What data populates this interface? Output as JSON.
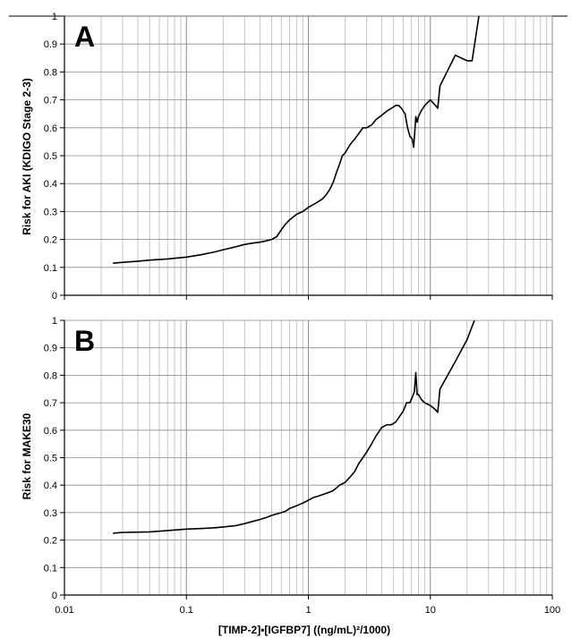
{
  "figure": {
    "top_rule": true
  },
  "chart_data": [
    {
      "type": "line",
      "panel": "A",
      "ylabel": "Risk for AKI (KDIGO Stage 2-3)",
      "xlabel": "",
      "xscale": "log",
      "xlim": [
        0.01,
        100
      ],
      "ylim": [
        0,
        1
      ],
      "xtick_labels": [],
      "ytick_labels": [
        "0",
        "0.1",
        "0.2",
        "0.3",
        "0.4",
        "0.5",
        "0.6",
        "0.7",
        "0.8",
        "0.9",
        "1"
      ],
      "grid": true,
      "x": [
        0.025,
        0.03,
        0.04,
        0.05,
        0.07,
        0.1,
        0.13,
        0.17,
        0.2,
        0.25,
        0.3,
        0.35,
        0.4,
        0.45,
        0.5,
        0.55,
        0.6,
        0.65,
        0.7,
        0.8,
        0.9,
        1.0,
        1.1,
        1.2,
        1.3,
        1.4,
        1.5,
        1.6,
        1.7,
        1.8,
        1.9,
        2.0,
        2.2,
        2.4,
        2.6,
        2.8,
        3.0,
        3.3,
        3.6,
        4.0,
        4.4,
        4.8,
        5.2,
        5.5,
        5.8,
        6.2,
        6.5,
        6.8,
        7.1,
        7.3,
        7.5,
        7.6,
        7.8,
        8.0,
        8.4,
        9.0,
        10.0,
        11.0,
        11.5,
        12.0,
        16.0,
        20.0,
        22.0,
        25.0
      ],
      "y": [
        0.115,
        0.118,
        0.122,
        0.126,
        0.13,
        0.137,
        0.145,
        0.155,
        0.163,
        0.173,
        0.182,
        0.187,
        0.19,
        0.195,
        0.2,
        0.21,
        0.235,
        0.255,
        0.27,
        0.29,
        0.3,
        0.315,
        0.325,
        0.335,
        0.345,
        0.36,
        0.38,
        0.405,
        0.44,
        0.47,
        0.5,
        0.51,
        0.54,
        0.56,
        0.58,
        0.6,
        0.6,
        0.61,
        0.63,
        0.645,
        0.66,
        0.67,
        0.68,
        0.68,
        0.67,
        0.65,
        0.6,
        0.57,
        0.56,
        0.53,
        0.6,
        0.64,
        0.62,
        0.64,
        0.66,
        0.68,
        0.7,
        0.68,
        0.67,
        0.75,
        0.86,
        0.84,
        0.84,
        1.0
      ]
    },
    {
      "type": "line",
      "panel": "B",
      "ylabel": "Risk for MAKE30",
      "xlabel": "[TIMP-2]•[IGFBP7]  ((ng/mL)²/1000)",
      "xscale": "log",
      "xlim": [
        0.01,
        100
      ],
      "ylim": [
        0,
        1
      ],
      "xtick_labels": [
        "0.01",
        "0.1",
        "1",
        "10",
        "100"
      ],
      "ytick_labels": [
        "0",
        "0.1",
        "0.2",
        "0.3",
        "0.4",
        "0.5",
        "0.6",
        "0.7",
        "0.8",
        "0.9",
        "1"
      ],
      "grid": true,
      "x": [
        0.025,
        0.03,
        0.04,
        0.05,
        0.07,
        0.1,
        0.13,
        0.17,
        0.2,
        0.25,
        0.3,
        0.35,
        0.4,
        0.45,
        0.5,
        0.55,
        0.6,
        0.65,
        0.7,
        0.8,
        0.9,
        1.0,
        1.1,
        1.2,
        1.3,
        1.4,
        1.5,
        1.6,
        1.7,
        1.8,
        2.0,
        2.2,
        2.4,
        2.6,
        2.8,
        3.0,
        3.3,
        3.6,
        4.0,
        4.4,
        4.8,
        5.2,
        5.6,
        6.0,
        6.4,
        6.8,
        7.1,
        7.4,
        7.6,
        7.8,
        8.0,
        8.5,
        9.0,
        10.0,
        11.0,
        11.5,
        12.0,
        16.0,
        20.0,
        23.0
      ],
      "y": [
        0.225,
        0.228,
        0.229,
        0.23,
        0.235,
        0.24,
        0.242,
        0.245,
        0.248,
        0.252,
        0.26,
        0.268,
        0.275,
        0.282,
        0.29,
        0.295,
        0.3,
        0.305,
        0.315,
        0.325,
        0.335,
        0.345,
        0.355,
        0.36,
        0.365,
        0.37,
        0.375,
        0.38,
        0.39,
        0.4,
        0.41,
        0.43,
        0.45,
        0.48,
        0.5,
        0.52,
        0.55,
        0.58,
        0.61,
        0.62,
        0.62,
        0.63,
        0.65,
        0.67,
        0.7,
        0.7,
        0.72,
        0.74,
        0.81,
        0.73,
        0.73,
        0.71,
        0.7,
        0.69,
        0.675,
        0.665,
        0.75,
        0.85,
        0.93,
        1.0
      ]
    }
  ]
}
